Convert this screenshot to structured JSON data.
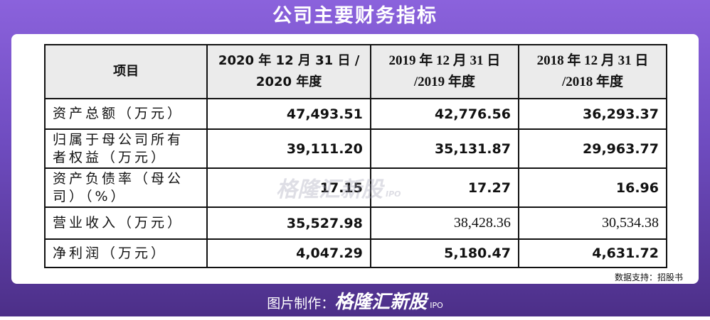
{
  "title": "公司主要财务指标",
  "table": {
    "header": [
      [
        "项目"
      ],
      [
        "2020 年 12 月 31 日 /",
        "2020 年度"
      ],
      [
        "2019 年 12 月 31 日",
        "/2019 年度"
      ],
      [
        "2018 年 12 月 31 日",
        "/2018 年度"
      ]
    ],
    "rows": [
      [
        "资产总额（万元）",
        "47,493.51",
        "42,776.56",
        "36,293.37"
      ],
      [
        "归属于母公司所有者权益（万元）",
        "39,111.20",
        "35,131.87",
        "29,963.77"
      ],
      [
        "资产负债率（母公司）（%）",
        "17.15",
        "17.27",
        "16.96"
      ],
      [
        "营业收入（万元）",
        "35,527.98",
        "38,428.36",
        "30,534.38"
      ],
      [
        "净利润（万元）",
        "4,047.29",
        "5,180.47",
        "4,631.72"
      ]
    ]
  },
  "source": "数据支持：招股书",
  "watermark": {
    "brand": "格隆汇新股",
    "sub": "IPO"
  },
  "footer": {
    "label": "图片制作：",
    "brand": "格隆汇新股",
    "sub": "IPO"
  }
}
